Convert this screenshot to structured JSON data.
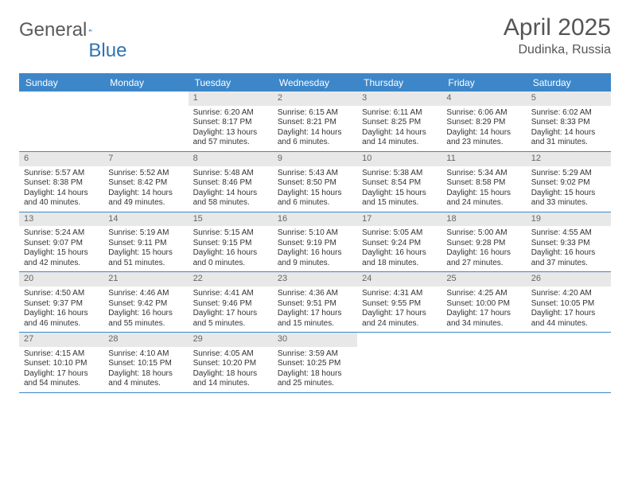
{
  "brand": {
    "text_general": "General",
    "text_blue": "Blue"
  },
  "title": {
    "month": "April 2025",
    "location": "Dudinka, Russia"
  },
  "colors": {
    "header_bg": "#3d87c9",
    "header_text": "#ffffff",
    "daynum_bg": "#e8e8e8",
    "daynum_text": "#666666",
    "border": "#3d87c9",
    "body_text": "#333333",
    "logo_gray": "#5a5a5a",
    "logo_blue": "#2e74b5"
  },
  "day_headers": [
    "Sunday",
    "Monday",
    "Tuesday",
    "Wednesday",
    "Thursday",
    "Friday",
    "Saturday"
  ],
  "weeks": [
    [
      null,
      null,
      {
        "n": "1",
        "sr": "Sunrise: 6:20 AM",
        "ss": "Sunset: 8:17 PM",
        "dl": "Daylight: 13 hours and 57 minutes."
      },
      {
        "n": "2",
        "sr": "Sunrise: 6:15 AM",
        "ss": "Sunset: 8:21 PM",
        "dl": "Daylight: 14 hours and 6 minutes."
      },
      {
        "n": "3",
        "sr": "Sunrise: 6:11 AM",
        "ss": "Sunset: 8:25 PM",
        "dl": "Daylight: 14 hours and 14 minutes."
      },
      {
        "n": "4",
        "sr": "Sunrise: 6:06 AM",
        "ss": "Sunset: 8:29 PM",
        "dl": "Daylight: 14 hours and 23 minutes."
      },
      {
        "n": "5",
        "sr": "Sunrise: 6:02 AM",
        "ss": "Sunset: 8:33 PM",
        "dl": "Daylight: 14 hours and 31 minutes."
      }
    ],
    [
      {
        "n": "6",
        "sr": "Sunrise: 5:57 AM",
        "ss": "Sunset: 8:38 PM",
        "dl": "Daylight: 14 hours and 40 minutes."
      },
      {
        "n": "7",
        "sr": "Sunrise: 5:52 AM",
        "ss": "Sunset: 8:42 PM",
        "dl": "Daylight: 14 hours and 49 minutes."
      },
      {
        "n": "8",
        "sr": "Sunrise: 5:48 AM",
        "ss": "Sunset: 8:46 PM",
        "dl": "Daylight: 14 hours and 58 minutes."
      },
      {
        "n": "9",
        "sr": "Sunrise: 5:43 AM",
        "ss": "Sunset: 8:50 PM",
        "dl": "Daylight: 15 hours and 6 minutes."
      },
      {
        "n": "10",
        "sr": "Sunrise: 5:38 AM",
        "ss": "Sunset: 8:54 PM",
        "dl": "Daylight: 15 hours and 15 minutes."
      },
      {
        "n": "11",
        "sr": "Sunrise: 5:34 AM",
        "ss": "Sunset: 8:58 PM",
        "dl": "Daylight: 15 hours and 24 minutes."
      },
      {
        "n": "12",
        "sr": "Sunrise: 5:29 AM",
        "ss": "Sunset: 9:02 PM",
        "dl": "Daylight: 15 hours and 33 minutes."
      }
    ],
    [
      {
        "n": "13",
        "sr": "Sunrise: 5:24 AM",
        "ss": "Sunset: 9:07 PM",
        "dl": "Daylight: 15 hours and 42 minutes."
      },
      {
        "n": "14",
        "sr": "Sunrise: 5:19 AM",
        "ss": "Sunset: 9:11 PM",
        "dl": "Daylight: 15 hours and 51 minutes."
      },
      {
        "n": "15",
        "sr": "Sunrise: 5:15 AM",
        "ss": "Sunset: 9:15 PM",
        "dl": "Daylight: 16 hours and 0 minutes."
      },
      {
        "n": "16",
        "sr": "Sunrise: 5:10 AM",
        "ss": "Sunset: 9:19 PM",
        "dl": "Daylight: 16 hours and 9 minutes."
      },
      {
        "n": "17",
        "sr": "Sunrise: 5:05 AM",
        "ss": "Sunset: 9:24 PM",
        "dl": "Daylight: 16 hours and 18 minutes."
      },
      {
        "n": "18",
        "sr": "Sunrise: 5:00 AM",
        "ss": "Sunset: 9:28 PM",
        "dl": "Daylight: 16 hours and 27 minutes."
      },
      {
        "n": "19",
        "sr": "Sunrise: 4:55 AM",
        "ss": "Sunset: 9:33 PM",
        "dl": "Daylight: 16 hours and 37 minutes."
      }
    ],
    [
      {
        "n": "20",
        "sr": "Sunrise: 4:50 AM",
        "ss": "Sunset: 9:37 PM",
        "dl": "Daylight: 16 hours and 46 minutes."
      },
      {
        "n": "21",
        "sr": "Sunrise: 4:46 AM",
        "ss": "Sunset: 9:42 PM",
        "dl": "Daylight: 16 hours and 55 minutes."
      },
      {
        "n": "22",
        "sr": "Sunrise: 4:41 AM",
        "ss": "Sunset: 9:46 PM",
        "dl": "Daylight: 17 hours and 5 minutes."
      },
      {
        "n": "23",
        "sr": "Sunrise: 4:36 AM",
        "ss": "Sunset: 9:51 PM",
        "dl": "Daylight: 17 hours and 15 minutes."
      },
      {
        "n": "24",
        "sr": "Sunrise: 4:31 AM",
        "ss": "Sunset: 9:55 PM",
        "dl": "Daylight: 17 hours and 24 minutes."
      },
      {
        "n": "25",
        "sr": "Sunrise: 4:25 AM",
        "ss": "Sunset: 10:00 PM",
        "dl": "Daylight: 17 hours and 34 minutes."
      },
      {
        "n": "26",
        "sr": "Sunrise: 4:20 AM",
        "ss": "Sunset: 10:05 PM",
        "dl": "Daylight: 17 hours and 44 minutes."
      }
    ],
    [
      {
        "n": "27",
        "sr": "Sunrise: 4:15 AM",
        "ss": "Sunset: 10:10 PM",
        "dl": "Daylight: 17 hours and 54 minutes."
      },
      {
        "n": "28",
        "sr": "Sunrise: 4:10 AM",
        "ss": "Sunset: 10:15 PM",
        "dl": "Daylight: 18 hours and 4 minutes."
      },
      {
        "n": "29",
        "sr": "Sunrise: 4:05 AM",
        "ss": "Sunset: 10:20 PM",
        "dl": "Daylight: 18 hours and 14 minutes."
      },
      {
        "n": "30",
        "sr": "Sunrise: 3:59 AM",
        "ss": "Sunset: 10:25 PM",
        "dl": "Daylight: 18 hours and 25 minutes."
      },
      null,
      null,
      null
    ]
  ]
}
